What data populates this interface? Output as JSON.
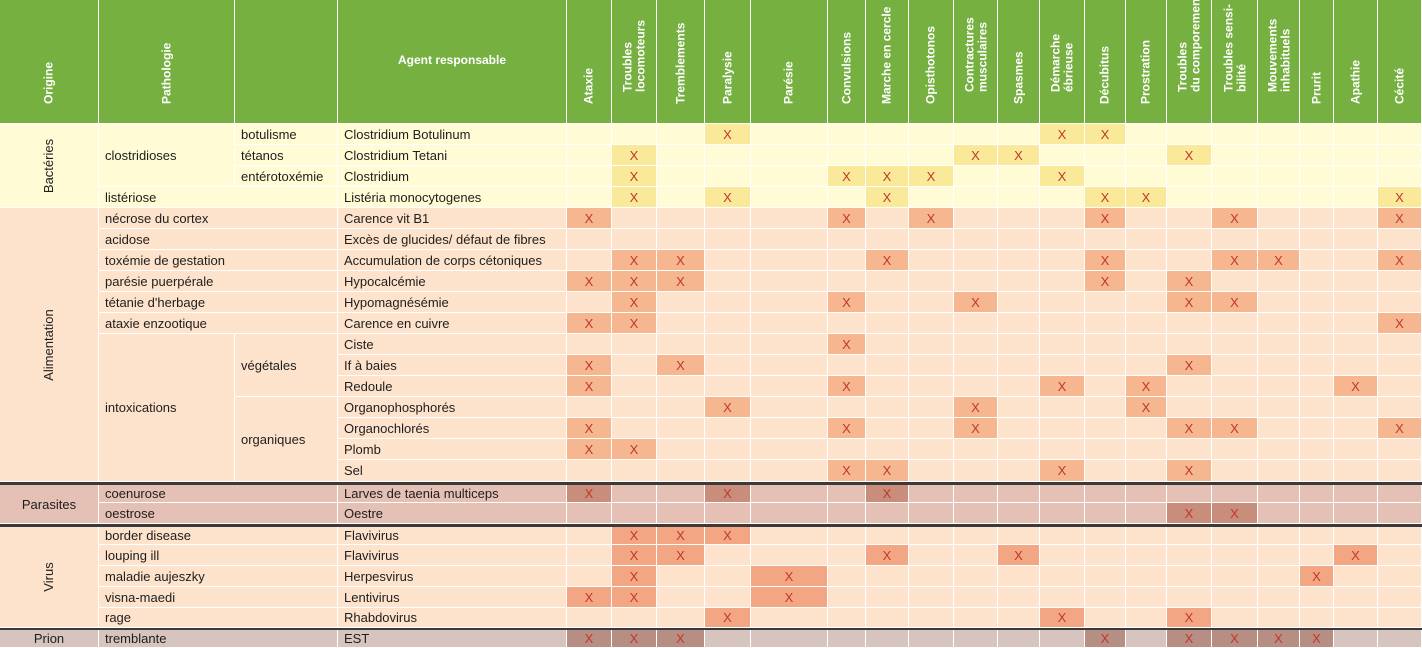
{
  "header": {
    "origine": "Origine",
    "pathologie": "Pathologie",
    "agent": "Agent responsable",
    "symptoms": [
      [
        "Ataxie"
      ],
      [
        "Troubles",
        "locomoteurs"
      ],
      [
        "Tremblements"
      ],
      [
        "Paralysie"
      ],
      [
        "Parésie"
      ],
      [
        "Convulsions"
      ],
      [
        "Marche en cercle"
      ],
      [
        "Opisthotonos"
      ],
      [
        "Contractures",
        "musculaires"
      ],
      [
        "Spasmes"
      ],
      [
        "Démarche",
        "ébrieuse"
      ],
      [
        "Décubitus"
      ],
      [
        "Prostration"
      ],
      [
        "Troubles",
        "du comporement"
      ],
      [
        "Troubles sensi-",
        "bilité"
      ],
      [
        "Mouvements",
        "inhabituels"
      ],
      [
        "Prurit"
      ],
      [
        "Apathie"
      ],
      [
        "Cécité"
      ]
    ]
  },
  "mark": "X",
  "groups": [
    {
      "name": "Bactéries",
      "start": 0,
      "end": 3
    },
    {
      "name": "Alimentation",
      "start": 4,
      "end": 16
    },
    {
      "name": "Parasites",
      "start": 17,
      "end": 18
    },
    {
      "name": "Virus",
      "start": 19,
      "end": 23
    },
    {
      "name": "Prion",
      "start": 24,
      "end": 24
    }
  ],
  "pathologies": [
    {
      "label": "clostridioses",
      "start": 0,
      "end": 2
    },
    {
      "label": "listériose",
      "start": 3,
      "end": 3
    },
    {
      "label": "nécrose du cortex",
      "start": 4,
      "end": 4
    },
    {
      "label": "acidose",
      "start": 5,
      "end": 5
    },
    {
      "label": "toxémie de gestation",
      "start": 6,
      "end": 6
    },
    {
      "label": "parésie puerpérale",
      "start": 7,
      "end": 7
    },
    {
      "label": "tétanie d'herbage",
      "start": 8,
      "end": 8
    },
    {
      "label": "ataxie enzootique",
      "start": 9,
      "end": 9
    },
    {
      "label": "intoxications",
      "start": 10,
      "end": 16
    },
    {
      "label": "coenurose",
      "start": 17,
      "end": 17
    },
    {
      "label": "oestrose",
      "start": 18,
      "end": 18
    },
    {
      "label": "border disease",
      "start": 19,
      "end": 19
    },
    {
      "label": "louping ill",
      "start": 20,
      "end": 20
    },
    {
      "label": "maladie aujeszky",
      "start": 21,
      "end": 21
    },
    {
      "label": "visna-maedi",
      "start": 22,
      "end": 22
    },
    {
      "label": "rage",
      "start": 23,
      "end": 23
    },
    {
      "label": "tremblante",
      "start": 24,
      "end": 24
    }
  ],
  "subtypes": [
    {
      "label": "botulisme",
      "start": 0,
      "end": 0
    },
    {
      "label": "tétanos",
      "start": 1,
      "end": 1
    },
    {
      "label": "entérotoxémie",
      "start": 2,
      "end": 2
    },
    {
      "label": "",
      "start": 3,
      "end": 3
    },
    {
      "label": "",
      "start": 4,
      "end": 9
    },
    {
      "label": "végétales",
      "start": 10,
      "end": 12
    },
    {
      "label": "organiques",
      "start": 13,
      "end": 16
    },
    {
      "label": "",
      "start": 17,
      "end": 18
    },
    {
      "label": "",
      "start": 19,
      "end": 23
    },
    {
      "label": "",
      "start": 24,
      "end": 24
    }
  ],
  "rows": [
    {
      "agent": "Clostridium Botulinum",
      "marks": [
        3,
        10,
        11
      ]
    },
    {
      "agent": "Clostridium Tetani",
      "marks": [
        1,
        8,
        9,
        13
      ]
    },
    {
      "agent": "Clostridium",
      "marks": [
        1,
        5,
        6,
        7,
        10
      ]
    },
    {
      "agent": "Listéria monocytogenes",
      "marks": [
        1,
        3,
        6,
        11,
        12,
        18
      ]
    },
    {
      "agent": "Carence vit B1",
      "marks": [
        0,
        5,
        7,
        11,
        14,
        18
      ]
    },
    {
      "agent": "Excès de glucides/ défaut de fibres",
      "marks": []
    },
    {
      "agent": "Accumulation de corps cétoniques",
      "marks": [
        1,
        2,
        6,
        11,
        14,
        15,
        18
      ]
    },
    {
      "agent": "Hypocalcémie",
      "marks": [
        0,
        1,
        2,
        11,
        13
      ]
    },
    {
      "agent": "Hypomagnésémie",
      "marks": [
        1,
        5,
        8,
        13,
        14
      ]
    },
    {
      "agent": "Carence en cuivre",
      "marks": [
        0,
        1,
        18
      ]
    },
    {
      "agent": "Ciste",
      "marks": [
        5
      ]
    },
    {
      "agent": "If à baies",
      "marks": [
        0,
        2,
        13
      ]
    },
    {
      "agent": "Redoule",
      "marks": [
        0,
        5,
        10,
        12,
        17
      ]
    },
    {
      "agent": "Organophosphorés",
      "marks": [
        3,
        8,
        12
      ]
    },
    {
      "agent": "Organochlorés",
      "marks": [
        0,
        5,
        8,
        13,
        14,
        18
      ]
    },
    {
      "agent": "Plomb",
      "marks": [
        0,
        1
      ]
    },
    {
      "agent": "Sel",
      "marks": [
        5,
        6,
        10,
        13
      ]
    },
    {
      "agent": "Larves de taenia multiceps",
      "marks": [
        0,
        3,
        6
      ]
    },
    {
      "agent": "Oestre",
      "marks": [
        13,
        14
      ]
    },
    {
      "agent": "Flavivirus",
      "marks": [
        1,
        2,
        3
      ]
    },
    {
      "agent": "Flavivirus",
      "marks": [
        1,
        2,
        6,
        9,
        17
      ]
    },
    {
      "agent": "Herpesvirus",
      "marks": [
        1,
        4,
        16
      ]
    },
    {
      "agent": "Lentivirus",
      "marks": [
        0,
        1,
        4
      ]
    },
    {
      "agent": "Rhabdovirus",
      "marks": [
        3,
        10,
        13
      ]
    },
    {
      "agent": "EST",
      "marks": [
        0,
        1,
        2,
        11,
        13,
        14,
        15,
        16
      ]
    }
  ],
  "colors": {
    "header": "#76b041",
    "bacteria_light": "#fffbd4",
    "bacteria_mark": "#fbe99a",
    "food_light": "#fde2cc",
    "food_mark": "#f6b68f",
    "parasite_light": "#e4c1b4",
    "parasite_mark": "#c98d7b",
    "virus_light": "#fde2cc",
    "virus_mark": "#f3a683",
    "prion_light": "#d8c4be",
    "prion_mark": "#b68e83",
    "mark_text": "#c0392b"
  }
}
